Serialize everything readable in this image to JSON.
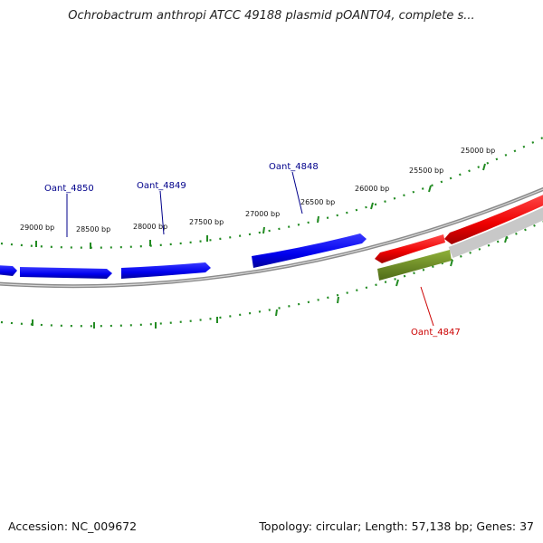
{
  "title": "Ochrobactrum anthropi ATCC 49188 plasmid pOANT04, complete s...",
  "footer": {
    "accession": "Accession: NC_009672",
    "summary": "Topology: circular; Length: 57,138 bp; Genes: 37"
  },
  "colors": {
    "forward_gene": "#0000ee",
    "reverse_gene": "#ee0000",
    "feature_olive": "#6b8e23",
    "backbone": "#808080",
    "ticks": "#228b22",
    "forward_label": "#00008b",
    "reverse_label": "#cc0000"
  },
  "ticks": [
    {
      "label": "25000 bp"
    },
    {
      "label": "25500 bp"
    },
    {
      "label": "26000 bp"
    },
    {
      "label": "26500 bp"
    },
    {
      "label": "27000 bp"
    },
    {
      "label": "27500 bp"
    },
    {
      "label": "28000 bp"
    },
    {
      "label": "28500 bp"
    },
    {
      "label": "29000 bp"
    }
  ],
  "genes": [
    {
      "name": "Oant_4850",
      "strand": "forward"
    },
    {
      "name": "Oant_4849",
      "strand": "forward"
    },
    {
      "name": "Oant_4848",
      "strand": "forward"
    },
    {
      "name": "Oant_4847",
      "strand": "reverse"
    }
  ]
}
